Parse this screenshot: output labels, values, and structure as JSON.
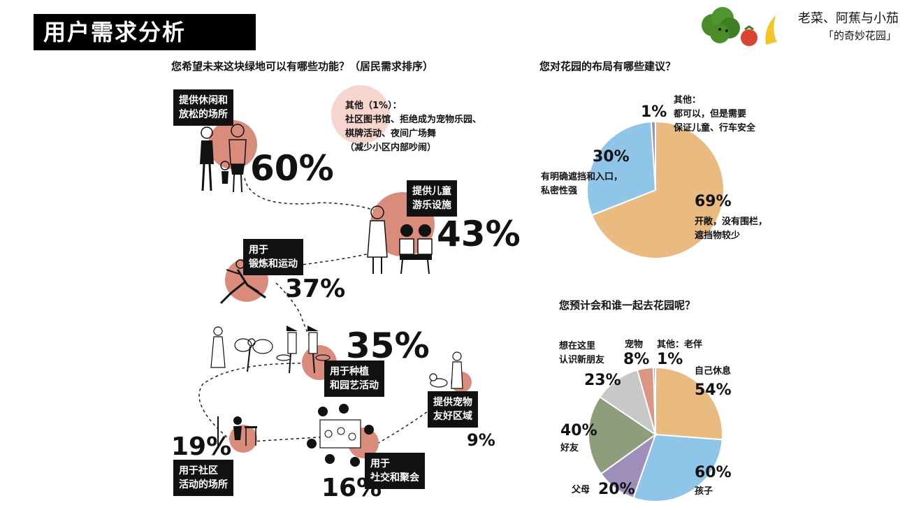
{
  "header": {
    "title": "用户需求分析"
  },
  "logo": {
    "line1": "老菜、阿蕉与小茄",
    "line2": "「的奇妙花园」"
  },
  "functions": {
    "question": "您希望未来这块绿地可以有哪些功能？（居民需求排序）",
    "items": [
      {
        "label_l1": "提供休闲和",
        "label_l2": "放松的场所",
        "percent": "60%"
      },
      {
        "label_l1": "提供儿童",
        "label_l2": "游乐设施",
        "percent": "43%"
      },
      {
        "label_l1": "用于",
        "label_l2": "锻炼和运动",
        "percent": "37%"
      },
      {
        "label_l1": "用于种植",
        "label_l2": "和园艺活动",
        "percent": "35%"
      },
      {
        "label_l1": "用于社区",
        "label_l2": "活动的场所",
        "percent": "19%"
      },
      {
        "label_l1": "用于",
        "label_l2": "社交和聚会",
        "percent": "16%"
      },
      {
        "label_l1": "提供宠物",
        "label_l2": "友好区域",
        "percent": "9%"
      }
    ],
    "other": {
      "line1": "其他（1%）：",
      "line2": "社区图书馆、拒绝成为宠物乐园、",
      "line3": "棋牌活动、夜间广场舞",
      "line4": "（减少小区内部吵闹）"
    }
  },
  "layout_chart": {
    "question": "您对花园的布局有哪些建议？",
    "pct_open": "69%",
    "open_l1": "开敞，没有围栏，",
    "open_l2": "遮挡物较少",
    "pct_private": "30%",
    "private_l1": "有明确遮挡和入口，",
    "private_l2": "私密性强",
    "pct_other": "1%",
    "other_l1": "其他：",
    "other_l2": "都可以，但是需要",
    "other_l3": "保证儿童、行车安全"
  },
  "companion_chart": {
    "question": "您预计会和谁一起去花园呢？",
    "self_label": "自己休息",
    "self_pct": "54%",
    "kids_pct": "60%",
    "kids_label": "孩子",
    "parents_label": "父母",
    "parents_pct": "20%",
    "friends_pct": "40%",
    "friends_label": "好友",
    "new_l1": "想在这里",
    "new_l2": "认识新朋友",
    "new_pct": "23%",
    "pet_label": "宠物",
    "pet_pct": "8%",
    "other_label": "其他：老伴",
    "other_pct": "1%"
  },
  "chart_data": [
    {
      "type": "pie",
      "title": "您对花园的布局有哪些建议？",
      "categories": [
        "开敞，没有围栏，遮挡物较少",
        "有明确遮挡和入口，私密性强",
        "其他"
      ],
      "values": [
        69,
        30,
        1
      ],
      "colors": [
        "#e9bb80",
        "#8fc5e8",
        "#9e8fba"
      ]
    },
    {
      "type": "pie",
      "title": "您预计会和谁一起去花园呢？",
      "categories": [
        "自己休息",
        "孩子",
        "父母",
        "好友",
        "想在这里认识新朋友",
        "宠物",
        "其他：老伴"
      ],
      "values": [
        54,
        60,
        20,
        40,
        23,
        8,
        1
      ],
      "colors": [
        "#e9bb80",
        "#8fc5e8",
        "#9e8fba",
        "#8e9e7c",
        "#c8c8c8",
        "#dc9684",
        "#8a7fa8"
      ]
    }
  ],
  "colors": {
    "accent_circle": "#d98c7b",
    "other_bubble": "#f5d5cd"
  }
}
